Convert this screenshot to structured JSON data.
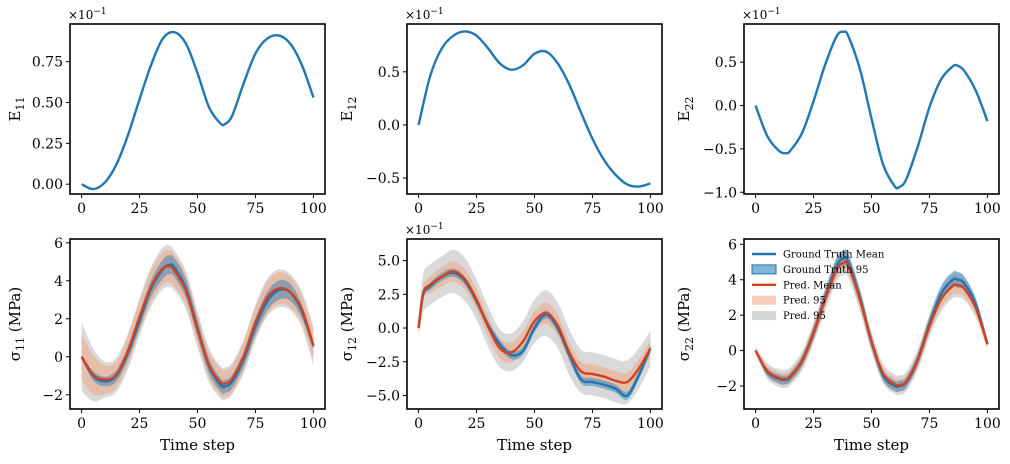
{
  "colors": {
    "truth": "#1f77b4",
    "truth_band": "#1f77b4",
    "pred": "#d1421f",
    "pred_band": "#f2a37e",
    "pred_band_outer": "#b4b4b4"
  },
  "legend": {
    "placement": "top-left of σ22 panel",
    "entries": [
      "Ground Truth Mean",
      "Ground Truth 95",
      "Pred. Mean",
      "Pred. 95",
      "Pred. 95"
    ]
  },
  "chart_data": [
    {
      "type": "line",
      "id": "E11",
      "ylabel": "E11",
      "ylabel_base": "E",
      "ylabel_sub": "11",
      "exponent": "×10−1",
      "xlim": [
        -5,
        105
      ],
      "ylim": [
        -0.06,
        0.98
      ],
      "xticks": [
        0,
        25,
        50,
        75,
        100
      ],
      "xtick_labels": [
        "0",
        "25",
        "50",
        "75",
        "100"
      ],
      "yticks": [
        0,
        0.25,
        0.5,
        0.75
      ],
      "ytick_labels": [
        "0.00",
        "0.25",
        "0.50",
        "0.75"
      ],
      "xlabel": "",
      "series": [
        {
          "name": "E11",
          "x": [
            0,
            5,
            10,
            15,
            20,
            25,
            30,
            35,
            40,
            45,
            50,
            55,
            60,
            62,
            65,
            70,
            75,
            80,
            85,
            90,
            95,
            100
          ],
          "y": [
            0,
            -0.03,
            0.01,
            0.12,
            0.3,
            0.52,
            0.73,
            0.89,
            0.93,
            0.86,
            0.68,
            0.47,
            0.37,
            0.37,
            0.42,
            0.62,
            0.8,
            0.89,
            0.91,
            0.86,
            0.73,
            0.53
          ]
        }
      ]
    },
    {
      "type": "line",
      "id": "E12",
      "ylabel": "E12",
      "ylabel_base": "E",
      "ylabel_sub": "12",
      "exponent": "×10−1",
      "xlim": [
        -5,
        105
      ],
      "ylim": [
        -0.65,
        0.95
      ],
      "xticks": [
        0,
        25,
        50,
        75,
        100
      ],
      "xtick_labels": [
        "0",
        "25",
        "50",
        "75",
        "100"
      ],
      "yticks": [
        -0.5,
        0,
        0.5
      ],
      "ytick_labels": [
        "−0.5",
        "0.0",
        "0.5"
      ],
      "xlabel": "",
      "series": [
        {
          "name": "E12",
          "x": [
            0,
            5,
            10,
            15,
            20,
            25,
            30,
            35,
            40,
            45,
            50,
            55,
            60,
            65,
            70,
            75,
            80,
            85,
            90,
            95,
            100
          ],
          "y": [
            0,
            0.46,
            0.72,
            0.84,
            0.88,
            0.84,
            0.72,
            0.58,
            0.52,
            0.56,
            0.67,
            0.69,
            0.58,
            0.38,
            0.12,
            -0.13,
            -0.33,
            -0.47,
            -0.56,
            -0.58,
            -0.55
          ]
        }
      ]
    },
    {
      "type": "line",
      "id": "E22",
      "ylabel": "E22",
      "ylabel_base": "E",
      "ylabel_sub": "22",
      "exponent": "×10−1",
      "xlim": [
        -5,
        105
      ],
      "ylim": [
        -1.02,
        0.94
      ],
      "xticks": [
        0,
        25,
        50,
        75,
        100
      ],
      "xtick_labels": [
        "0",
        "25",
        "50",
        "75",
        "100"
      ],
      "yticks": [
        -1,
        -0.5,
        0,
        0.5
      ],
      "ytick_labels": [
        "−1.0",
        "−0.5",
        "0.0",
        "0.5"
      ],
      "xlabel": "",
      "series": [
        {
          "name": "E22",
          "x": [
            0,
            5,
            10,
            13,
            15,
            20,
            25,
            30,
            35,
            38,
            40,
            45,
            50,
            55,
            60,
            62,
            65,
            70,
            75,
            80,
            85,
            87,
            90,
            95,
            100
          ],
          "y": [
            0,
            -0.35,
            -0.52,
            -0.55,
            -0.52,
            -0.32,
            0.05,
            0.47,
            0.8,
            0.85,
            0.8,
            0.42,
            -0.15,
            -0.68,
            -0.93,
            -0.94,
            -0.85,
            -0.47,
            -0.02,
            0.3,
            0.45,
            0.46,
            0.4,
            0.17,
            -0.18
          ]
        }
      ]
    },
    {
      "type": "line",
      "id": "S11",
      "ylabel": "σ11 (MPa)",
      "ylabel_base": "σ",
      "ylabel_sub": "11",
      "ylabel_unit": " (MPa)",
      "exponent": "",
      "xlim": [
        -5,
        105
      ],
      "ylim": [
        -2.75,
        6.2
      ],
      "xticks": [
        0,
        25,
        50,
        75,
        100
      ],
      "xtick_labels": [
        "0",
        "25",
        "50",
        "75",
        "100"
      ],
      "yticks": [
        -2,
        0,
        2,
        4,
        6
      ],
      "ytick_labels": [
        "−2",
        "0",
        "2",
        "4",
        "6"
      ],
      "xlabel": "Time step",
      "x": [
        0,
        5,
        10,
        15,
        20,
        25,
        30,
        35,
        38,
        40,
        45,
        50,
        55,
        60,
        62,
        65,
        70,
        75,
        80,
        85,
        90,
        95,
        100
      ],
      "truth_mean": [
        0,
        -1.0,
        -1.3,
        -1.0,
        0.2,
        1.9,
        3.6,
        4.6,
        4.85,
        4.7,
        3.6,
        1.5,
        -0.5,
        -1.5,
        -1.55,
        -1.3,
        -0.1,
        1.6,
        2.9,
        3.5,
        3.4,
        2.4,
        0.55
      ],
      "pred_mean": [
        0,
        -0.95,
        -1.2,
        -0.95,
        0.3,
        2.1,
        3.7,
        4.65,
        4.75,
        4.55,
        3.5,
        1.45,
        -0.45,
        -1.35,
        -1.4,
        -1.15,
        0.05,
        1.8,
        3.1,
        3.6,
        3.4,
        2.5,
        0.6
      ],
      "truth_band_halfwidth": [
        0.1,
        0.25,
        0.25,
        0.3,
        0.35,
        0.4,
        0.45,
        0.5,
        0.5,
        0.5,
        0.5,
        0.45,
        0.4,
        0.35,
        0.35,
        0.35,
        0.4,
        0.45,
        0.5,
        0.5,
        0.45,
        0.35,
        0.15
      ],
      "pred_band_halfwidth": [
        1.2,
        1.05,
        0.75,
        0.7,
        0.75,
        0.8,
        0.85,
        0.85,
        0.85,
        0.85,
        0.8,
        0.75,
        0.7,
        0.7,
        0.7,
        0.7,
        0.75,
        0.8,
        0.85,
        0.85,
        0.8,
        0.75,
        0.75
      ],
      "pred_band_outer_halfwidth": [
        1.8,
        1.4,
        0.95,
        0.9,
        0.95,
        1.0,
        1.05,
        1.1,
        1.1,
        1.05,
        1.0,
        0.95,
        0.9,
        0.85,
        0.85,
        0.85,
        0.9,
        0.95,
        1.0,
        1.0,
        0.95,
        0.95,
        1.05
      ],
      "show_legend": false
    },
    {
      "type": "line",
      "id": "S12",
      "ylabel": "σ12 (MPa)",
      "ylabel_base": "σ",
      "ylabel_sub": "12",
      "ylabel_unit": " (MPa)",
      "exponent": "×10−1",
      "xlim": [
        -5,
        105
      ],
      "ylim": [
        -6.0,
        6.6
      ],
      "xticks": [
        0,
        25,
        50,
        75,
        100
      ],
      "xtick_labels": [
        "0",
        "25",
        "50",
        "75",
        "100"
      ],
      "yticks": [
        -5,
        -2.5,
        0,
        2.5,
        5
      ],
      "ytick_labels": [
        "−5.0",
        "−2.5",
        "0.0",
        "2.5",
        "5.0"
      ],
      "xlabel": "Time step",
      "x": [
        0,
        2,
        5,
        10,
        15,
        20,
        25,
        30,
        35,
        40,
        45,
        50,
        55,
        60,
        65,
        70,
        75,
        80,
        85,
        90,
        95,
        100
      ],
      "truth_mean": [
        0,
        2.5,
        3.1,
        3.8,
        4.1,
        3.5,
        2.0,
        0.2,
        -1.2,
        -2.0,
        -1.7,
        0.0,
        1.0,
        0.0,
        -2.0,
        -3.8,
        -4.0,
        -4.2,
        -4.5,
        -5.0,
        -3.5,
        -1.5
      ],
      "pred_mean": [
        0,
        2.6,
        3.2,
        3.8,
        4.2,
        3.6,
        2.1,
        0.1,
        -1.5,
        -1.8,
        -1.0,
        0.5,
        1.1,
        0.2,
        -1.8,
        -3.2,
        -3.4,
        -3.6,
        -3.9,
        -4.0,
        -3.0,
        -1.5
      ],
      "truth_band_halfwidth": [
        0.1,
        0.2,
        0.25,
        0.3,
        0.3,
        0.3,
        0.3,
        0.3,
        0.3,
        0.3,
        0.3,
        0.3,
        0.3,
        0.3,
        0.3,
        0.3,
        0.3,
        0.3,
        0.3,
        0.3,
        0.3,
        0.25
      ],
      "pred_band_halfwidth": [
        0.3,
        0.5,
        0.6,
        0.7,
        0.75,
        0.75,
        0.75,
        0.75,
        0.75,
        0.75,
        0.75,
        0.75,
        0.8,
        0.8,
        0.75,
        0.7,
        0.7,
        0.7,
        0.7,
        0.7,
        0.7,
        0.6
      ],
      "pred_band_outer_halfwidth": [
        0.6,
        1.4,
        1.5,
        1.5,
        1.6,
        1.6,
        1.5,
        1.5,
        1.4,
        1.4,
        1.5,
        1.6,
        1.7,
        1.7,
        1.7,
        1.6,
        1.6,
        1.6,
        1.6,
        1.6,
        1.5,
        1.3
      ],
      "show_legend": false
    },
    {
      "type": "line",
      "id": "S22",
      "ylabel": "σ22 (MPa)",
      "ylabel_base": "σ",
      "ylabel_sub": "22",
      "ylabel_unit": " (MPa)",
      "exponent": "",
      "xlim": [
        -5,
        105
      ],
      "ylim": [
        -3.3,
        6.3
      ],
      "xticks": [
        0,
        25,
        50,
        75,
        100
      ],
      "xtick_labels": [
        "0",
        "25",
        "50",
        "75",
        "100"
      ],
      "yticks": [
        -2,
        0,
        2,
        4,
        6
      ],
      "ytick_labels": [
        "−2",
        "0",
        "2",
        "4",
        "6"
      ],
      "xlabel": "Time step",
      "x": [
        0,
        5,
        10,
        13,
        15,
        20,
        25,
        30,
        35,
        38,
        40,
        45,
        50,
        55,
        60,
        62,
        65,
        70,
        75,
        80,
        85,
        87,
        90,
        95,
        100
      ],
      "truth_mean": [
        0,
        -1.2,
        -1.6,
        -1.65,
        -1.5,
        -0.6,
        1.0,
        3.0,
        4.8,
        5.2,
        5.0,
        3.0,
        0.5,
        -1.4,
        -2.0,
        -2.0,
        -1.8,
        -0.5,
        1.5,
        3.2,
        4.0,
        4.0,
        3.8,
        2.6,
        0.4
      ],
      "pred_mean": [
        0,
        -1.15,
        -1.55,
        -1.6,
        -1.45,
        -0.6,
        1.0,
        2.9,
        4.6,
        4.95,
        4.8,
        2.9,
        0.5,
        -1.3,
        -1.9,
        -1.95,
        -1.75,
        -0.5,
        1.4,
        2.9,
        3.65,
        3.7,
        3.5,
        2.4,
        0.35
      ],
      "truth_band_halfwidth": [
        0.05,
        0.2,
        0.25,
        0.25,
        0.25,
        0.3,
        0.35,
        0.4,
        0.45,
        0.45,
        0.45,
        0.4,
        0.35,
        0.3,
        0.3,
        0.3,
        0.3,
        0.35,
        0.4,
        0.45,
        0.45,
        0.45,
        0.4,
        0.35,
        0.1
      ],
      "pred_band_halfwidth": [
        0.1,
        0.3,
        0.35,
        0.35,
        0.35,
        0.4,
        0.45,
        0.5,
        0.5,
        0.5,
        0.5,
        0.45,
        0.4,
        0.35,
        0.35,
        0.35,
        0.35,
        0.4,
        0.45,
        0.5,
        0.5,
        0.5,
        0.45,
        0.4,
        0.15
      ],
      "pred_band_outer_halfwidth": [
        0.2,
        0.45,
        0.5,
        0.5,
        0.5,
        0.55,
        0.6,
        0.65,
        0.7,
        0.7,
        0.7,
        0.65,
        0.6,
        0.55,
        0.55,
        0.55,
        0.55,
        0.6,
        0.65,
        0.7,
        0.7,
        0.7,
        0.65,
        0.55,
        0.3
      ],
      "show_legend": true
    }
  ]
}
